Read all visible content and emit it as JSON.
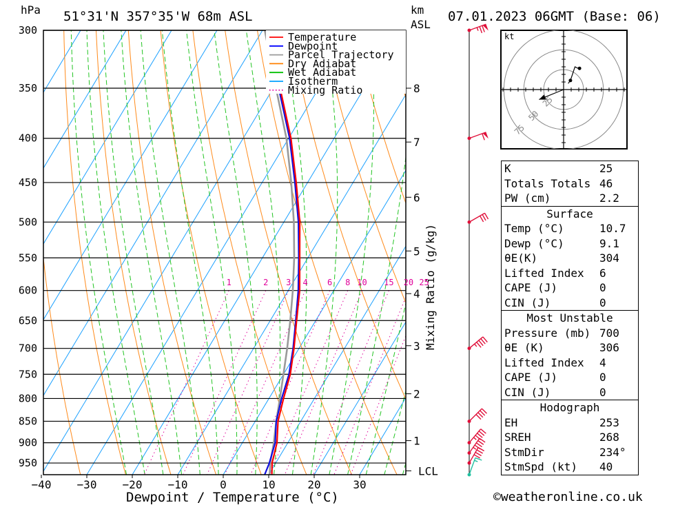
{
  "header": {
    "location": "51°31'N  357°35'W  68m  ASL",
    "datetime": "07.01.2023  06GMT  (Base: 06)",
    "hpa_label": "hPa",
    "km_label": "km",
    "asl_label": "ASL"
  },
  "legend": [
    {
      "label": "Temperature",
      "color": "#ff0000",
      "style": "solid"
    },
    {
      "label": "Dewpoint",
      "color": "#0000ff",
      "style": "solid"
    },
    {
      "label": "Parcel Trajectory",
      "color": "#999999",
      "style": "solid"
    },
    {
      "label": "Dry Adiabat",
      "color": "#ff8000",
      "style": "solid"
    },
    {
      "label": "Wet Adiabat",
      "color": "#00c000",
      "style": "solid"
    },
    {
      "label": "Isotherm",
      "color": "#00a0ff",
      "style": "solid"
    },
    {
      "label": "Mixing Ratio",
      "color": "#e000a0",
      "style": "dotted"
    }
  ],
  "chart_data": {
    "type": "line",
    "subtype": "skew-T log-P",
    "xlabel": "Dewpoint / Temperature (°C)",
    "y_right_label": "Mixing Ratio (g/kg)",
    "x_ticks": [
      -40,
      -30,
      -20,
      -10,
      0,
      10,
      20,
      30
    ],
    "pressure_levels": [
      300,
      350,
      400,
      450,
      500,
      550,
      600,
      650,
      700,
      750,
      800,
      850,
      900,
      950
    ],
    "km_ticks": [
      {
        "label": "8",
        "p": 350
      },
      {
        "label": "7",
        "p": 404
      },
      {
        "label": "6",
        "p": 468
      },
      {
        "label": "5",
        "p": 540
      },
      {
        "label": "4",
        "p": 605
      },
      {
        "label": "3",
        "p": 695
      },
      {
        "label": "2",
        "p": 790
      },
      {
        "label": "1",
        "p": 895
      },
      {
        "label": "LCL",
        "p": 970
      }
    ],
    "mixing_ratio_labels": [
      "1",
      "2",
      "3",
      "4",
      "6",
      "8",
      "10",
      "15",
      "20",
      "25"
    ],
    "mixing_ratio_values": [
      1,
      2,
      3,
      4,
      6,
      8,
      10,
      15,
      20,
      25
    ],
    "series": [
      {
        "name": "Temperature",
        "points": [
          [
            980,
            10.7
          ],
          [
            950,
            9.2
          ],
          [
            900,
            7.6
          ],
          [
            850,
            5.0
          ],
          [
            800,
            3.2
          ],
          [
            750,
            1.5
          ],
          [
            700,
            -1.1
          ],
          [
            650,
            -4.2
          ],
          [
            600,
            -7.5
          ],
          [
            550,
            -11.8
          ],
          [
            500,
            -16.5
          ],
          [
            450,
            -22.5
          ],
          [
            400,
            -29.5
          ],
          [
            350,
            -38.5
          ],
          [
            300,
            -47.5
          ]
        ]
      },
      {
        "name": "Dewpoint",
        "points": [
          [
            980,
            9.1
          ],
          [
            950,
            8.6
          ],
          [
            900,
            7.2
          ],
          [
            850,
            4.6
          ],
          [
            800,
            2.8
          ],
          [
            750,
            1.2
          ],
          [
            700,
            -1.3
          ],
          [
            650,
            -4.4
          ],
          [
            600,
            -7.8
          ],
          [
            550,
            -12.0
          ],
          [
            500,
            -16.8
          ],
          [
            450,
            -22.8
          ],
          [
            400,
            -29.8
          ],
          [
            350,
            -38.8
          ],
          [
            300,
            -47.8
          ]
        ]
      },
      {
        "name": "Parcel Trajectory",
        "points": [
          [
            980,
            10.2
          ],
          [
            950,
            8.8
          ],
          [
            900,
            6.9
          ],
          [
            850,
            4.6
          ],
          [
            800,
            2.4
          ],
          [
            750,
            0.0
          ],
          [
            700,
            -2.6
          ],
          [
            650,
            -5.6
          ],
          [
            600,
            -9.0
          ],
          [
            550,
            -13.0
          ],
          [
            500,
            -17.8
          ],
          [
            450,
            -23.6
          ],
          [
            400,
            -30.5
          ],
          [
            350,
            -39.4
          ],
          [
            300,
            -49.5
          ]
        ]
      }
    ],
    "wind_barbs": [
      {
        "p": 300,
        "dir": 250,
        "speed_kt": 75
      },
      {
        "p": 400,
        "dir": 250,
        "speed_kt": 60
      },
      {
        "p": 500,
        "dir": 240,
        "speed_kt": 30
      },
      {
        "p": 700,
        "dir": 230,
        "speed_kt": 45
      },
      {
        "p": 850,
        "dir": 225,
        "speed_kt": 40
      },
      {
        "p": 900,
        "dir": 220,
        "speed_kt": 45
      },
      {
        "p": 925,
        "dir": 215,
        "speed_kt": 45
      },
      {
        "p": 950,
        "dir": 210,
        "speed_kt": 40
      },
      {
        "p": 1000,
        "dir": 200,
        "speed_kt": 15
      }
    ]
  },
  "hodograph": {
    "unit_label": "kt",
    "ring_labels": [
      "25",
      "50",
      "75"
    ],
    "trace_kt": [
      [
        6,
        8
      ],
      [
        9,
        12
      ],
      [
        13,
        24
      ],
      [
        15,
        30
      ],
      [
        19,
        28
      ],
      [
        21,
        28
      ]
    ],
    "storm_motion": {
      "dir_deg": 234,
      "speed_kt": 40
    }
  },
  "indices": {
    "top": [
      {
        "name": "K",
        "value": "25"
      },
      {
        "name": "Totals Totals",
        "value": "46"
      },
      {
        "name": "PW (cm)",
        "value": "2.2"
      }
    ],
    "surface_title": "Surface",
    "surface": [
      {
        "name": "Temp (°C)",
        "value": "10.7"
      },
      {
        "name": "Dewp (°C)",
        "value": "9.1"
      },
      {
        "name": "θE(K)",
        "value": "304"
      },
      {
        "name": "Lifted Index",
        "value": "6"
      },
      {
        "name": "CAPE (J)",
        "value": "0"
      },
      {
        "name": "CIN (J)",
        "value": "0"
      }
    ],
    "mu_title": "Most Unstable",
    "mu": [
      {
        "name": "Pressure (mb)",
        "value": "700"
      },
      {
        "name": "θE (K)",
        "value": "306"
      },
      {
        "name": "Lifted Index",
        "value": "4"
      },
      {
        "name": "CAPE (J)",
        "value": "0"
      },
      {
        "name": "CIN (J)",
        "value": "0"
      }
    ],
    "hodo_title": "Hodograph",
    "hodo": [
      {
        "name": "EH",
        "value": "253"
      },
      {
        "name": "SREH",
        "value": "268"
      },
      {
        "name": "StmDir",
        "value": "234°"
      },
      {
        "name": "StmSpd (kt)",
        "value": "40"
      }
    ]
  },
  "credit": "©weatheronline.co.uk"
}
